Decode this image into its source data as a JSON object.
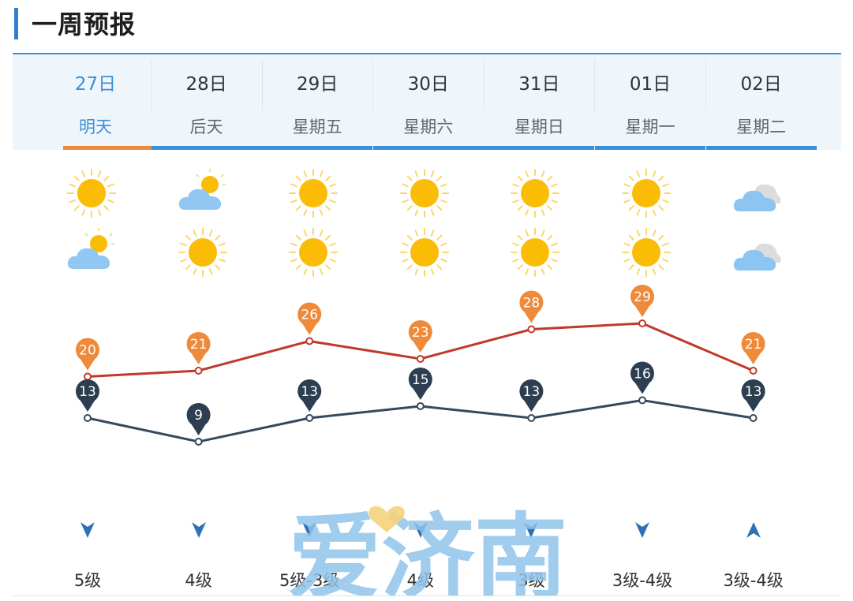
{
  "header": {
    "title": "一周预报"
  },
  "days": [
    {
      "date": "27日",
      "weekday": "明天",
      "active": true,
      "day_icon": "sun-icon",
      "night_icon": "cloudy-sun-icon",
      "high": 20,
      "low": 13,
      "wind_dir": "down",
      "wind": "5级"
    },
    {
      "date": "28日",
      "weekday": "后天",
      "active": false,
      "day_icon": "cloudy-sun-icon",
      "night_icon": "sun-icon",
      "high": 21,
      "low": 9,
      "wind_dir": "down",
      "wind": "4级"
    },
    {
      "date": "29日",
      "weekday": "星期五",
      "active": false,
      "day_icon": "sun-icon",
      "night_icon": "sun-icon",
      "high": 26,
      "low": 13,
      "wind_dir": "down",
      "wind": "5级-3级"
    },
    {
      "date": "30日",
      "weekday": "星期六",
      "active": false,
      "day_icon": "sun-icon",
      "night_icon": "sun-icon",
      "high": 23,
      "low": 15,
      "wind_dir": "down",
      "wind": "4级"
    },
    {
      "date": "31日",
      "weekday": "星期日",
      "active": false,
      "day_icon": "sun-icon",
      "night_icon": "sun-icon",
      "high": 28,
      "low": 13,
      "wind_dir": "down",
      "wind": "3级"
    },
    {
      "date": "01日",
      "weekday": "星期一",
      "active": false,
      "day_icon": "sun-icon",
      "night_icon": "sun-icon",
      "high": 29,
      "low": 16,
      "wind_dir": "down",
      "wind": "3级-4级"
    },
    {
      "date": "02日",
      "weekday": "星期二",
      "active": false,
      "day_icon": "cloud-icon",
      "night_icon": "cloud-icon",
      "high": 21,
      "low": 13,
      "wind_dir": "up",
      "wind": "3级-4级"
    }
  ],
  "chart_data": {
    "type": "line",
    "x": [
      "27日",
      "28日",
      "29日",
      "30日",
      "31日",
      "01日",
      "02日"
    ],
    "series": [
      {
        "values": [
          20,
          21,
          26,
          23,
          28,
          29,
          21
        ],
        "color": "#c0392b",
        "pin_color": "#ee8a3a"
      },
      {
        "values": [
          13,
          9,
          13,
          15,
          13,
          16,
          13
        ],
        "color": "#34495e",
        "pin_color": "#2c3e50"
      }
    ]
  },
  "watermark": {
    "text": "爱济南"
  },
  "colors": {
    "accent": "#3b8fd8",
    "active": "#ee8a3a",
    "sun": "#fbbc05",
    "cloud": "#8cc4f2"
  }
}
